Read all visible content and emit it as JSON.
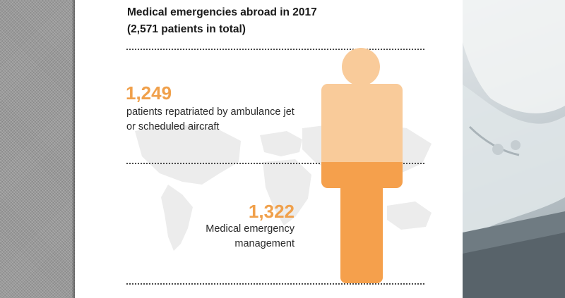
{
  "title": {
    "line1": "Medical emergencies abroad in 2017",
    "line2": "(2,571 patients in total)"
  },
  "colors": {
    "repatriated": "#f9cb9a",
    "management": "#f5a04c",
    "accent_text": "#f0a04b"
  },
  "chart_data": {
    "type": "bar",
    "subtype": "stacked-pictogram",
    "pictogram": "person",
    "title": "Medical emergencies abroad in 2017",
    "subtitle": "(2,571 patients in total)",
    "total": 2571,
    "series": [
      {
        "value": 1249,
        "label": "1,249",
        "description": [
          "patients repatriated by ambulance jet",
          "or scheduled aircraft"
        ],
        "color": "#f9cb9a"
      },
      {
        "value": 1322,
        "label": "1,322",
        "description": [
          "Medical emergency",
          "management"
        ],
        "color": "#f5a04c"
      }
    ]
  }
}
